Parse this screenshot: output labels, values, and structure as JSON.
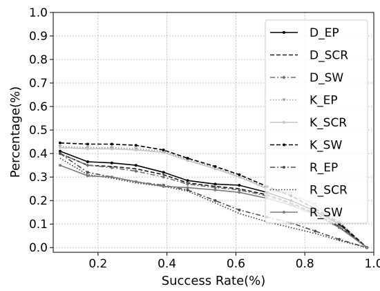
{
  "chart_data": {
    "type": "line",
    "title": "",
    "xlabel": "Success Rate(%)",
    "ylabel": "Percentage(%)",
    "xlim": [
      0.07,
      1.0
    ],
    "ylim": [
      -0.02,
      1.0
    ],
    "xticks": [
      "0.2",
      "0.4",
      "0.6",
      "0.8",
      "1.0"
    ],
    "xtick_values": [
      0.2,
      0.4,
      0.6,
      0.8,
      1.0
    ],
    "yticks": [
      "0.0",
      "0.1",
      "0.2",
      "0.3",
      "0.4",
      "0.5",
      "0.6",
      "0.7",
      "0.8",
      "0.9",
      "1.0"
    ],
    "ytick_values": [
      0.0,
      0.1,
      0.2,
      0.3,
      0.4,
      0.5,
      0.6,
      0.7,
      0.8,
      0.9,
      1.0
    ],
    "grid": true,
    "legend_position": "top-right",
    "series": [
      {
        "name": "D_EP",
        "color": "#000000",
        "dash": "solid",
        "marker": "dot",
        "x": [
          0.09,
          0.17,
          0.24,
          0.31,
          0.39,
          0.46,
          0.54,
          0.61,
          0.69,
          0.76,
          0.83,
          0.9,
          0.98
        ],
        "y": [
          0.41,
          0.365,
          0.36,
          0.35,
          0.32,
          0.285,
          0.27,
          0.265,
          0.235,
          0.2,
          0.155,
          0.1,
          0.0
        ]
      },
      {
        "name": "D_SCR",
        "color": "#1a1a1a",
        "dash": "dashed",
        "marker": "none",
        "x": [
          0.09,
          0.17,
          0.24,
          0.31,
          0.39,
          0.46,
          0.54,
          0.61,
          0.69,
          0.76,
          0.83,
          0.9,
          0.98
        ],
        "y": [
          0.4,
          0.35,
          0.345,
          0.335,
          0.31,
          0.275,
          0.26,
          0.25,
          0.225,
          0.19,
          0.145,
          0.09,
          0.0
        ]
      },
      {
        "name": "D_SW",
        "color": "#6e6e6e",
        "dash": "dashdot",
        "marker": "diamond",
        "x": [
          0.09,
          0.17,
          0.24,
          0.31,
          0.39,
          0.46,
          0.54,
          0.61,
          0.69,
          0.76,
          0.83,
          0.9,
          0.98
        ],
        "y": [
          0.4,
          0.35,
          0.34,
          0.325,
          0.3,
          0.27,
          0.255,
          0.245,
          0.22,
          0.185,
          0.14,
          0.09,
          0.0
        ]
      },
      {
        "name": "K_EP",
        "color": "#9a9a9a",
        "dash": "dotted",
        "marker": "triangle",
        "x": [
          0.09,
          0.17,
          0.24,
          0.31,
          0.39,
          0.46,
          0.54,
          0.61,
          0.69,
          0.76,
          0.83,
          0.9,
          0.98
        ],
        "y": [
          0.43,
          0.425,
          0.425,
          0.42,
          0.41,
          0.375,
          0.34,
          0.305,
          0.255,
          0.23,
          0.185,
          0.11,
          0.0
        ]
      },
      {
        "name": "K_SCR",
        "color": "#c4c4c4",
        "dash": "solid",
        "marker": "dot",
        "x": [
          0.09,
          0.17,
          0.24,
          0.31,
          0.39,
          0.46,
          0.54,
          0.61,
          0.69,
          0.76,
          0.83,
          0.9,
          0.98
        ],
        "y": [
          0.425,
          0.42,
          0.42,
          0.415,
          0.405,
          0.37,
          0.335,
          0.3,
          0.25,
          0.225,
          0.18,
          0.105,
          0.0
        ]
      },
      {
        "name": "K_SW",
        "color": "#000000",
        "dash": "dashed",
        "marker": "dot",
        "x": [
          0.09,
          0.17,
          0.24,
          0.31,
          0.39,
          0.46,
          0.54,
          0.61,
          0.69,
          0.76,
          0.83,
          0.9,
          0.98
        ],
        "y": [
          0.445,
          0.44,
          0.44,
          0.435,
          0.415,
          0.38,
          0.345,
          0.31,
          0.26,
          0.22,
          0.165,
          0.105,
          0.0
        ]
      },
      {
        "name": "R_EP",
        "color": "#4d4d4d",
        "dash": "dashdot",
        "marker": "dot",
        "x": [
          0.09,
          0.17,
          0.24,
          0.31,
          0.39,
          0.46,
          0.54,
          0.61,
          0.69,
          0.76,
          0.83,
          0.9,
          0.98
        ],
        "y": [
          0.4,
          0.32,
          0.3,
          0.28,
          0.265,
          0.245,
          0.2,
          0.16,
          0.13,
          0.105,
          0.07,
          0.035,
          0.0
        ]
      },
      {
        "name": "R_SCR",
        "color": "#333333",
        "dash": "dotted",
        "marker": "none",
        "x": [
          0.09,
          0.17,
          0.24,
          0.31,
          0.39,
          0.46,
          0.54,
          0.61,
          0.69,
          0.76,
          0.83,
          0.9,
          0.98
        ],
        "y": [
          0.38,
          0.31,
          0.295,
          0.275,
          0.26,
          0.24,
          0.19,
          0.145,
          0.11,
          0.085,
          0.06,
          0.03,
          0.0
        ]
      },
      {
        "name": "R_SW",
        "color": "#7a7a7a",
        "dash": "solid",
        "marker": "dot",
        "x": [
          0.09,
          0.17,
          0.24,
          0.31,
          0.39,
          0.46,
          0.54,
          0.61,
          0.69,
          0.76,
          0.83,
          0.9,
          0.98
        ],
        "y": [
          0.35,
          0.305,
          0.3,
          0.28,
          0.26,
          0.255,
          0.245,
          0.235,
          0.21,
          0.18,
          0.14,
          0.085,
          0.0
        ]
      }
    ]
  }
}
